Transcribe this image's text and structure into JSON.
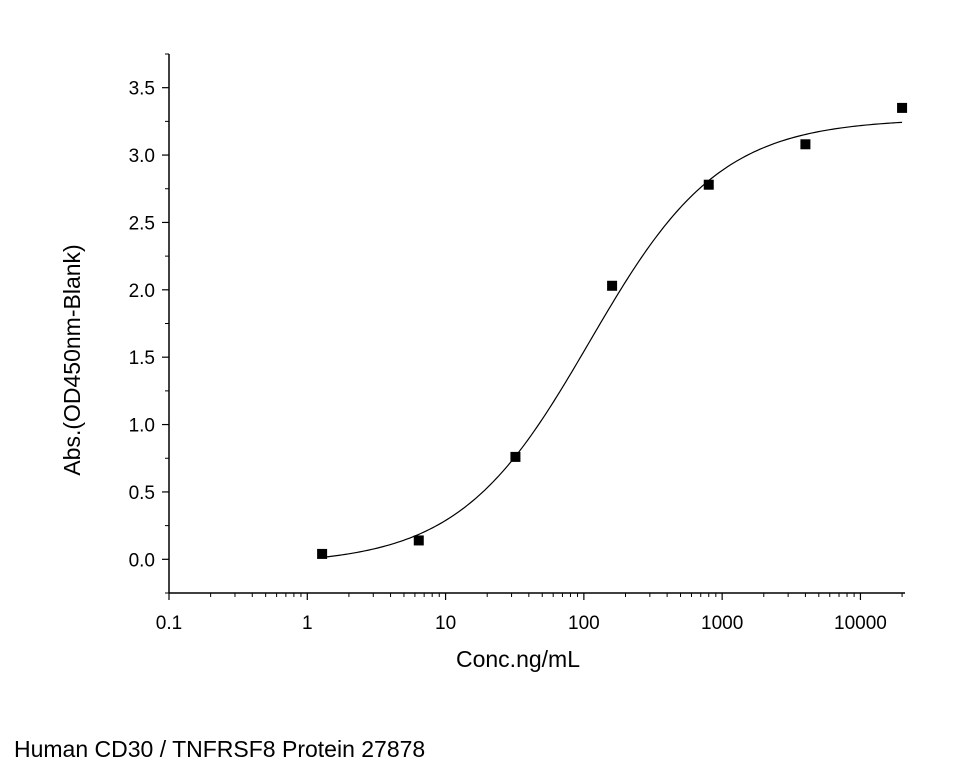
{
  "caption": "Human CD30 / TNFRSF8 Protein 27878",
  "chart_data": {
    "type": "scatter",
    "xlabel": "Conc.ng/mL",
    "ylabel": "Abs.(OD450nm-Blank)",
    "x_scale": "log",
    "xlim": [
      0.1,
      21000
    ],
    "ylim": [
      -0.25,
      3.75
    ],
    "x_ticks": [
      0.1,
      1,
      10,
      100,
      1000,
      10000
    ],
    "x_tick_labels": [
      "0.1",
      "1",
      "10",
      "100",
      "1000",
      "10000"
    ],
    "y_ticks": [
      0,
      0.5,
      1,
      1.5,
      2,
      2.5,
      3,
      3.5
    ],
    "y_tick_labels": [
      "0.0",
      "0.5",
      "1.0",
      "1.5",
      "2.0",
      "2.5",
      "3.0",
      "3.5"
    ],
    "grid": false,
    "series": [
      {
        "points": [
          {
            "x": 1.28,
            "y": 0.04
          },
          {
            "x": 6.4,
            "y": 0.14
          },
          {
            "x": 32,
            "y": 0.76
          },
          {
            "x": 160,
            "y": 2.03
          },
          {
            "x": 800,
            "y": 2.78
          },
          {
            "x": 4000,
            "y": 3.08
          },
          {
            "x": 20000,
            "y": 3.35
          }
        ],
        "marker": "square",
        "color": "#000000"
      }
    ],
    "fit": {
      "model": "4PL",
      "bottom": -0.04,
      "top": 3.27,
      "ec50": 110,
      "hill": 0.92,
      "x_range": [
        1.28,
        20000
      ],
      "color": "#000000"
    }
  }
}
